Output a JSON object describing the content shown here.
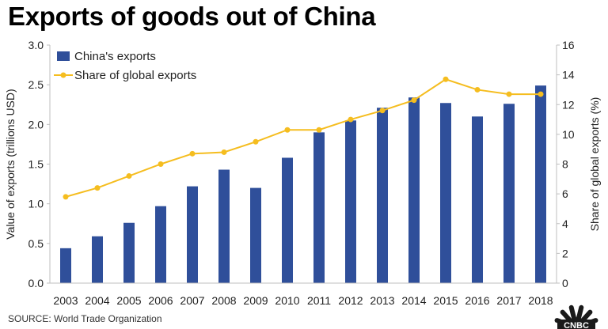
{
  "chart_data": {
    "type": "bar+line",
    "title": "Exports of goods out of China",
    "categories": [
      "2003",
      "2004",
      "2005",
      "2006",
      "2007",
      "2008",
      "2009",
      "2010",
      "2011",
      "2012",
      "2013",
      "2014",
      "2015",
      "2016",
      "2017",
      "2018"
    ],
    "series": [
      {
        "name": "China's exports",
        "type": "bar",
        "axis": "left",
        "values": [
          0.44,
          0.59,
          0.76,
          0.97,
          1.22,
          1.43,
          1.2,
          1.58,
          1.9,
          2.05,
          2.21,
          2.34,
          2.27,
          2.1,
          2.26,
          2.49
        ]
      },
      {
        "name": "Share of global exports",
        "type": "line",
        "axis": "right",
        "values": [
          5.8,
          6.4,
          7.2,
          8.0,
          8.7,
          8.8,
          9.5,
          10.3,
          10.3,
          11.0,
          11.6,
          12.3,
          13.7,
          13.0,
          12.7,
          12.7
        ]
      }
    ],
    "ylabel": "Value of exports (trillions USD)",
    "ylabel_right": "Share of global exports (%)",
    "ylim": [
      0,
      3.0
    ],
    "ylim_right": [
      0,
      16
    ],
    "yticks": [
      "0.0",
      "0.5",
      "1.0",
      "1.5",
      "2.0",
      "2.5",
      "3.0"
    ],
    "yticks_right": [
      "0",
      "2",
      "4",
      "6",
      "8",
      "10",
      "12",
      "14",
      "16"
    ],
    "legend_position": "top-left",
    "source": "SOURCE: World Trade Organization",
    "logo_text": "CNBC",
    "colors": {
      "bar": "#2f4f9a",
      "line": "#f5bd1f",
      "axis": "#bfbfbf"
    }
  }
}
